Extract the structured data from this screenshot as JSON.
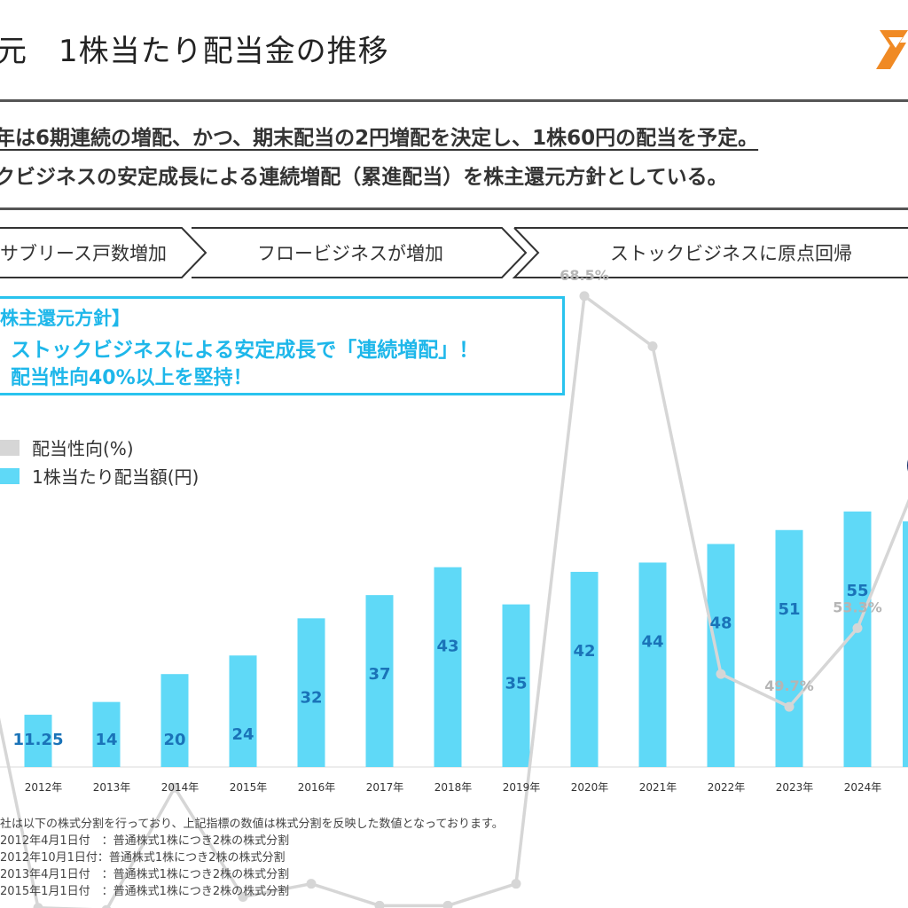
{
  "header": {
    "title": "元　1株当たり配当金の推移"
  },
  "lead": {
    "line1": "年は6期連続の増配、かつ、期末配当の2円増配を決定し、1株60円の配当を予定。",
    "line2": "クビジネスの安定成長による連続増配（累進配当）を株主還元方針としている。"
  },
  "phases": [
    "サブリース戸数増加",
    "フロービジネスが増加",
    "ストックビジネスに原点回帰"
  ],
  "policy": {
    "heading": "株主還元方針】",
    "line1": "ストックビジネスによる安定成長で「連続増配」！",
    "line2": "配当性向40%以上を堅持！"
  },
  "colors": {
    "accent": "#29c3ee",
    "bar": "#5fd9f7",
    "bar_label": "#1a73b8",
    "line": "#d6d6d6",
    "line_label": "#b5b5b5",
    "divider": "#555555",
    "logo_orange": "#f08a24"
  },
  "chart_data": {
    "type": "bar",
    "categories": [
      "2012年",
      "2013年",
      "2014年",
      "2015年",
      "2016年",
      "2017年",
      "2018年",
      "2019年",
      "2020年",
      "2021年",
      "2022年",
      "2023年",
      "2024年"
    ],
    "series": [
      {
        "name": "1株当たり配当額(円)",
        "type": "bar",
        "values": [
          11.25,
          14,
          20,
          24,
          32,
          37,
          43,
          35,
          42,
          44,
          48,
          51,
          55
        ],
        "labels": [
          "11.25",
          "14",
          "20",
          "24",
          "32",
          "37",
          "43",
          "35",
          "42",
          "44",
          "48",
          "51",
          "55"
        ]
      },
      {
        "name": "配当性向(%)",
        "type": "line",
        "values": [
          40.5,
          40.4,
          46.0,
          41.0,
          41.6,
          40.6,
          40.6,
          41.6,
          68.5,
          66.2,
          51.2,
          49.7,
          53.3
        ],
        "labels": [
          "",
          "",
          "",
          "",
          "",
          "",
          "",
          "",
          "68.5%",
          "",
          "",
          "49.7%",
          "53.3%"
        ]
      }
    ],
    "legend": [
      "配当性向(%)",
      "1株当たり配当額(円)"
    ],
    "legend_position": "left",
    "grid": false
  },
  "footnotes": [
    "社は以下の株式分割を行っており、上記指標の数値は株式分割を反映した数値となっております。",
    "2012年4月1日付　：普通株式1株につき2株の株式分割",
    "2012年10月1日付：普通株式1株につき2株の株式分割",
    "2013年4月1日付　：普通株式1株につき2株の株式分割",
    "2015年1月1日付　：普通株式1株につき2株の株式分割"
  ]
}
